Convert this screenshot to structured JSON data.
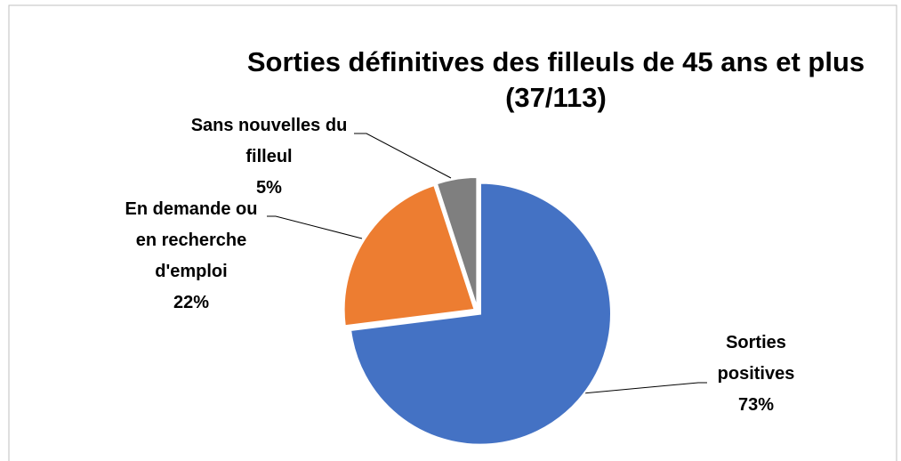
{
  "chart_data": {
    "type": "pie",
    "title": "Sorties définitives des filleuls de 45 ans et plus",
    "subtitle": "(37/113)",
    "categories": [
      "Sorties positives",
      "En demande ou en recherche d'emploi",
      "Sans nouvelles du filleul"
    ],
    "values": [
      73,
      22,
      5
    ],
    "value_labels": [
      "73%",
      "22%",
      "5%"
    ],
    "colors": [
      "#4472c4",
      "#ed7d31",
      "#7f7f7f"
    ]
  }
}
